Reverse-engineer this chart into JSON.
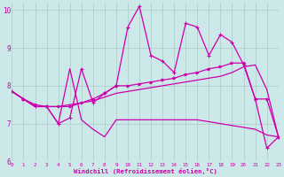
{
  "xlabel": "Windchill (Refroidissement éolien,°C)",
  "xlim": [
    0,
    23
  ],
  "ylim": [
    6,
    10.2
  ],
  "yticks": [
    6,
    7,
    8,
    9,
    10
  ],
  "xticks": [
    0,
    1,
    2,
    3,
    4,
    5,
    6,
    7,
    8,
    9,
    10,
    11,
    12,
    13,
    14,
    15,
    16,
    17,
    18,
    19,
    20,
    21,
    22,
    23
  ],
  "bg_color": "#cce8e8",
  "line_color": "#cc00aa",
  "grid_color": "#aacccc",
  "series": [
    {
      "y": [
        7.85,
        7.65,
        7.45,
        7.45,
        7.0,
        8.45,
        7.1,
        6.85,
        6.65,
        7.1,
        7.1,
        7.1,
        7.1,
        7.1,
        7.1,
        7.1,
        7.1,
        7.05,
        7.0,
        6.95,
        6.9,
        6.85,
        6.7,
        6.65
      ],
      "marker": null,
      "lw": 0.9
    },
    {
      "y": [
        7.85,
        7.65,
        7.5,
        7.45,
        7.45,
        7.45,
        7.55,
        7.65,
        7.8,
        8.0,
        8.0,
        8.05,
        8.1,
        8.15,
        8.2,
        8.3,
        8.35,
        8.45,
        8.5,
        8.6,
        8.6,
        7.65,
        7.65,
        6.65
      ],
      "marker": ">",
      "ms": 2.0,
      "lw": 0.9
    },
    {
      "y": [
        7.85,
        7.65,
        7.45,
        7.45,
        7.0,
        7.15,
        8.45,
        7.55,
        7.8,
        8.0,
        9.55,
        10.1,
        8.8,
        8.65,
        8.35,
        9.65,
        9.55,
        8.8,
        9.35,
        9.15,
        8.55,
        7.65,
        6.35,
        6.65
      ],
      "marker": "+",
      "ms": 3.0,
      "lw": 0.9
    },
    {
      "y": [
        7.85,
        7.65,
        7.45,
        7.45,
        7.45,
        7.5,
        7.55,
        7.6,
        7.7,
        7.8,
        7.85,
        7.9,
        7.95,
        8.0,
        8.05,
        8.1,
        8.15,
        8.2,
        8.25,
        8.35,
        8.5,
        8.55,
        7.9,
        6.65
      ],
      "marker": null,
      "lw": 0.9
    }
  ]
}
